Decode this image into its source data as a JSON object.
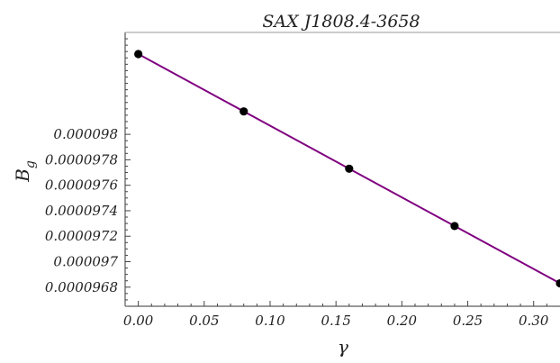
{
  "chart_data": {
    "type": "line",
    "title": "SAX J1808.4-3658",
    "xlabel": "γ",
    "ylabel": "B",
    "ylabel_subscript": "g",
    "xlim": [
      -0.01,
      0.32
    ],
    "ylim": [
      9.665e-05,
      9.88e-05
    ],
    "xticks": [
      0.0,
      0.05,
      0.1,
      0.15,
      0.2,
      0.25,
      0.3
    ],
    "xtick_labels": [
      "0.00",
      "0.05",
      "0.10",
      "0.15",
      "0.20",
      "0.25",
      "0.30"
    ],
    "yticks": [
      9.68e-05,
      9.7e-05,
      9.72e-05,
      9.74e-05,
      9.76e-05,
      9.78e-05,
      9.8e-05
    ],
    "ytick_labels": [
      "0.0000968",
      "0.000097",
      "0.0000972",
      "0.0000974",
      "0.0000976",
      "0.0000978",
      "0.000098"
    ],
    "grid": false,
    "series": [
      {
        "x": [
          0.0,
          0.32
        ],
        "y": [
          9.863e-05,
          9.683e-05
        ],
        "color": "#800080",
        "style": "line"
      },
      {
        "x": [
          0.0,
          0.08,
          0.16,
          0.24,
          0.32
        ],
        "y": [
          9.863e-05,
          9.818e-05,
          9.773e-05,
          9.728e-05,
          9.683e-05
        ],
        "color": "#000000",
        "style": "markers"
      }
    ]
  }
}
